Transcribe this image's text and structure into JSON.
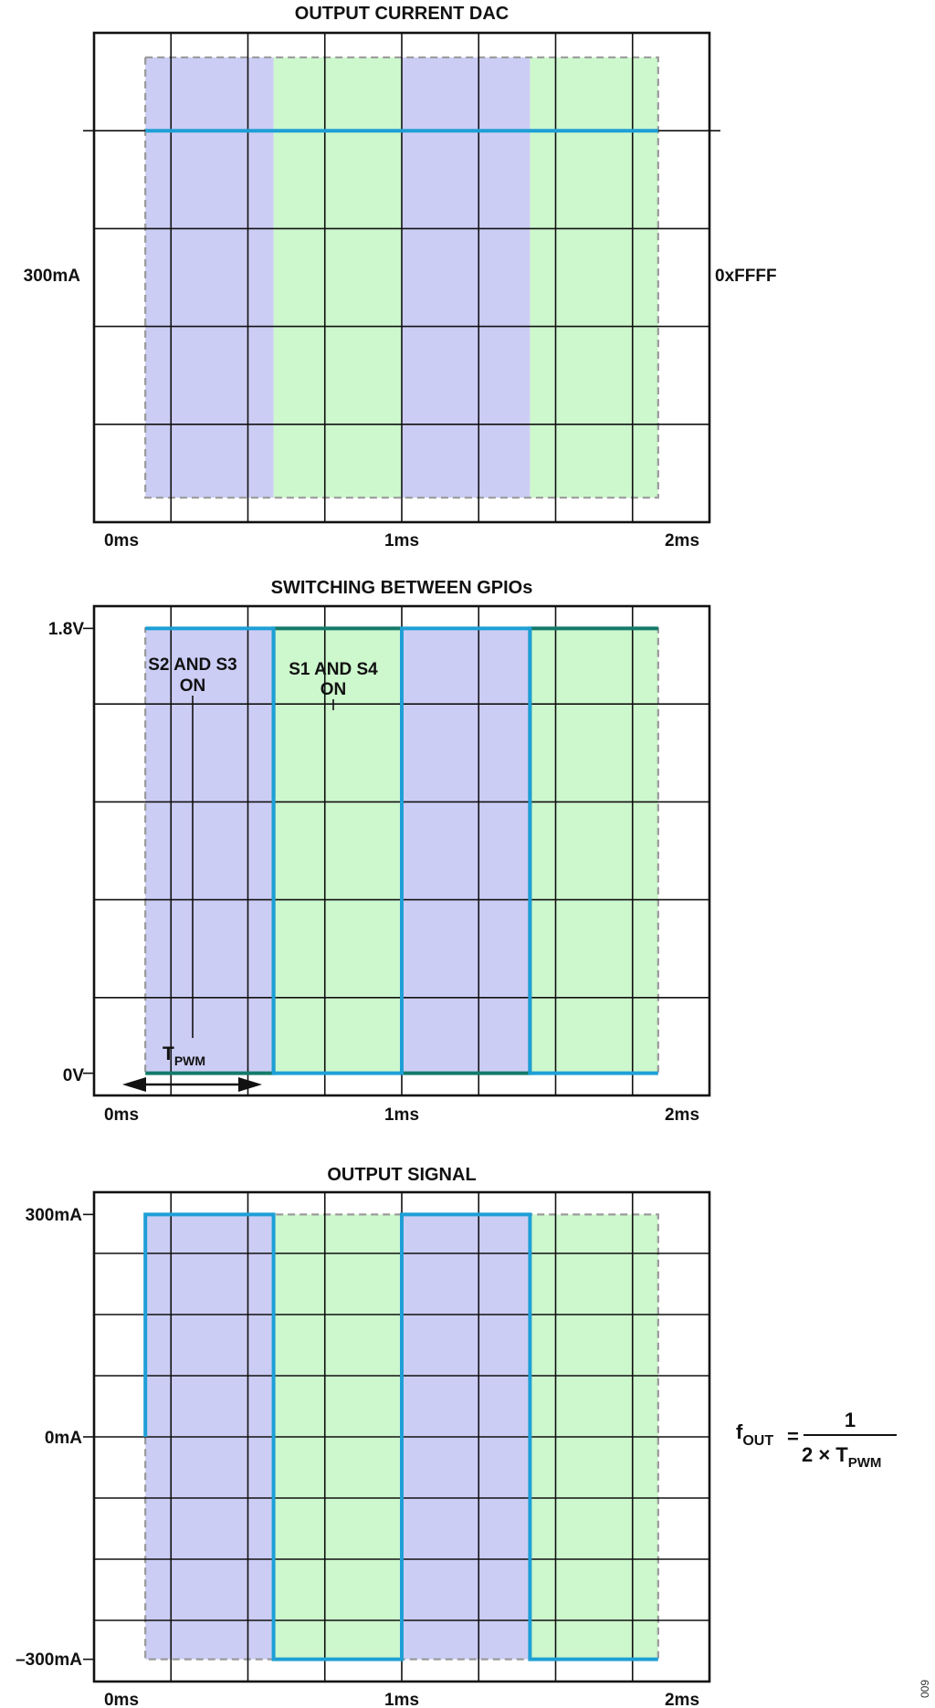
{
  "figure_id": "009",
  "colors": {
    "phase_a_fill": "#cccdf5",
    "phase_b_fill": "#cdf7cd",
    "signal": "#1e9fd6",
    "signal_alt": "#137a6a",
    "grid": "#111111",
    "dash": "#9a9a9a"
  },
  "chart_data": [
    {
      "type": "line",
      "title": "OUTPUT CURRENT DAC",
      "x_tick_labels": [
        "0ms",
        "1ms",
        "2ms"
      ],
      "x_ticks_ms": [
        0,
        1,
        2
      ],
      "xlim_ms": [
        -0.2,
        2.2
      ],
      "y_tick_labels": [
        "300mA"
      ],
      "y_ticks": [
        300
      ],
      "ylim": [
        -500,
        500
      ],
      "right_label": "0xFFFF",
      "phase_shading": [
        {
          "start_ms": 0,
          "end_ms": 0.5,
          "phase": "a"
        },
        {
          "start_ms": 0.5,
          "end_ms": 1.0,
          "phase": "b"
        },
        {
          "start_ms": 1.0,
          "end_ms": 1.5,
          "phase": "a"
        },
        {
          "start_ms": 1.5,
          "end_ms": 2.0,
          "phase": "b"
        }
      ],
      "series": [
        {
          "color": "#1e9fd6",
          "x_ms": [
            0,
            2
          ],
          "y": [
            300,
            300
          ]
        }
      ]
    },
    {
      "type": "line",
      "title": "SWITCHING BETWEEN GPIOs",
      "x_tick_labels": [
        "0ms",
        "1ms",
        "2ms"
      ],
      "x_ticks_ms": [
        0,
        1,
        2
      ],
      "xlim_ms": [
        -0.2,
        2.2
      ],
      "y_tick_labels": [
        "1.8V",
        "0V"
      ],
      "y_ticks": [
        1.8,
        0
      ],
      "ylim": [
        -0.09,
        1.89
      ],
      "annotations": [
        "S2 AND S3",
        "ON",
        "S1 AND S4",
        "ON"
      ],
      "tpwm_label": {
        "main": "T",
        "sub": "PWM"
      },
      "phase_shading": [
        {
          "start_ms": 0,
          "end_ms": 0.5,
          "phase": "a"
        },
        {
          "start_ms": 0.5,
          "end_ms": 1.0,
          "phase": "b"
        },
        {
          "start_ms": 1.0,
          "end_ms": 1.5,
          "phase": "a"
        },
        {
          "start_ms": 1.5,
          "end_ms": 2.0,
          "phase": "b"
        }
      ],
      "series": [
        {
          "color": "#1e9fd6",
          "x_ms": [
            0,
            0.5,
            0.5,
            1.0,
            1.0,
            1.5,
            1.5,
            2.0
          ],
          "y": [
            1.8,
            1.8,
            0,
            0,
            1.8,
            1.8,
            0,
            0
          ]
        },
        {
          "color": "#137a6a",
          "x_ms": [
            0,
            0.5,
            0.5,
            1.0,
            1.0,
            1.5,
            1.5,
            2.0
          ],
          "y": [
            0,
            0,
            1.8,
            1.8,
            0,
            0,
            1.8,
            1.8
          ]
        }
      ]
    },
    {
      "type": "line",
      "title": "OUTPUT SIGNAL",
      "x_tick_labels": [
        "0ms",
        "1ms",
        "2ms"
      ],
      "x_ticks_ms": [
        0,
        1,
        2
      ],
      "xlim_ms": [
        -0.2,
        2.2
      ],
      "y_tick_labels": [
        "300mA",
        "0mA",
        "–300mA"
      ],
      "y_ticks": [
        300,
        0,
        -300
      ],
      "ylim": [
        -330,
        330
      ],
      "phase_shading": [
        {
          "start_ms": 0,
          "end_ms": 0.5,
          "phase": "a"
        },
        {
          "start_ms": 0.5,
          "end_ms": 1.0,
          "phase": "b"
        },
        {
          "start_ms": 1.0,
          "end_ms": 1.5,
          "phase": "a"
        },
        {
          "start_ms": 1.5,
          "end_ms": 2.0,
          "phase": "b"
        }
      ],
      "series": [
        {
          "color": "#1e9fd6",
          "x_ms": [
            0,
            0,
            0.5,
            0.5,
            1.0,
            1.0,
            1.5,
            1.5,
            2.0
          ],
          "y": [
            0,
            300,
            300,
            -300,
            -300,
            300,
            300,
            -300,
            -300
          ]
        }
      ]
    }
  ],
  "formula": {
    "lhs_main": "f",
    "lhs_sub": "OUT",
    "equals": "=",
    "numerator": "1",
    "denominator_main": "2 × T",
    "denominator_sub": "PWM"
  }
}
